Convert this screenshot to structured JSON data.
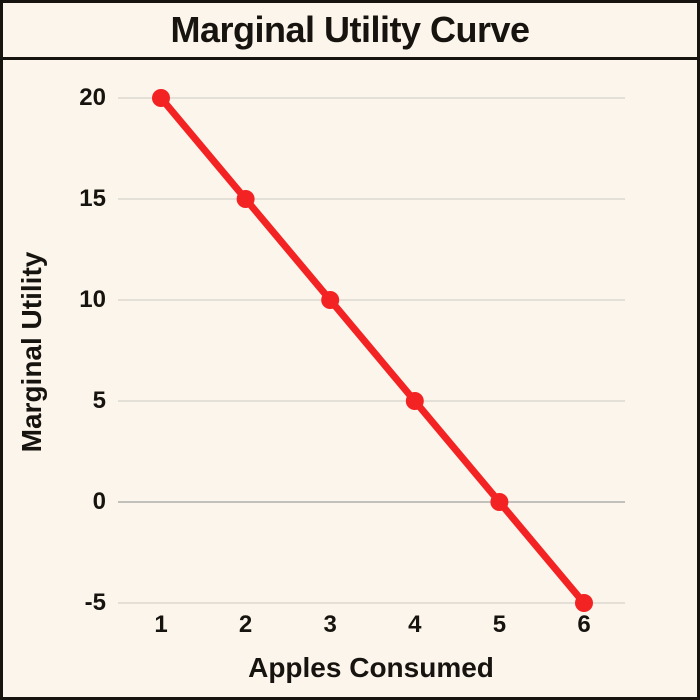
{
  "window": {
    "title": "Marginal Utility Curve"
  },
  "chart_data": {
    "type": "line",
    "title": "Marginal Utility Curve",
    "xlabel": "Apples Consumed",
    "ylabel": "Marginal Utility",
    "series": [
      {
        "name": "Marginal Utility",
        "x": [
          1,
          2,
          3,
          4,
          5,
          6
        ],
        "values": [
          20,
          15,
          10,
          5,
          0,
          -5
        ]
      }
    ],
    "xticks": [
      "1",
      "2",
      "3",
      "4",
      "5",
      "6"
    ],
    "yticks": [
      "20",
      "15",
      "10",
      "5",
      "0",
      "-5"
    ],
    "ytick_values": [
      20,
      15,
      10,
      5,
      0,
      -5
    ],
    "xtick_values": [
      1,
      2,
      3,
      4,
      5,
      6
    ],
    "xlim": [
      1,
      6
    ],
    "ylim": [
      -5,
      20
    ],
    "grid": "horizontal",
    "legend": "none",
    "colors": {
      "line": "#f32323",
      "point": "#f32323",
      "background": "#fbf5ec",
      "gridline": "#ddd9d2",
      "zero_line": "#c2c0ba",
      "border": "#17140f",
      "text": "#17140f"
    }
  }
}
